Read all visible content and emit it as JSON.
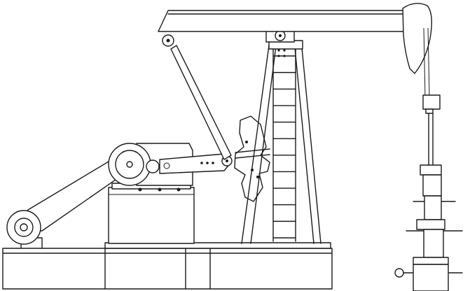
{
  "diagram": {
    "type": "line-drawing",
    "subject": "pumpjack",
    "stroke_color": "#1a1a1a",
    "fill_color": "#ffffff",
    "ladder_rungs": 12
  }
}
